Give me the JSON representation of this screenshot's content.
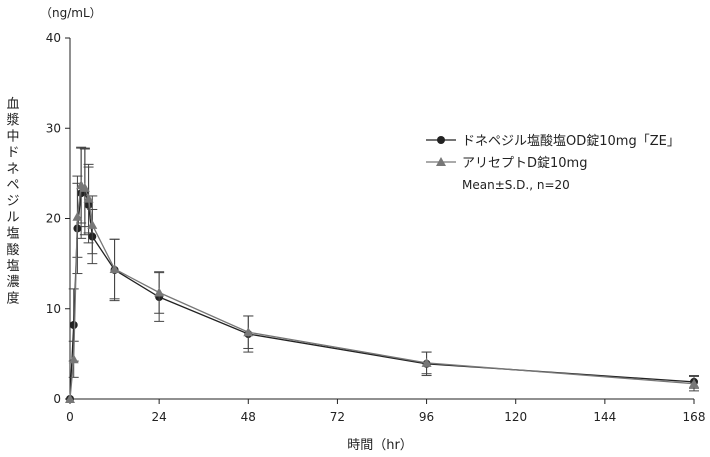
{
  "chart_data": {
    "type": "line",
    "y_unit": "（ng/mL）",
    "ylabel": "血漿中ドネペジル塩酸塩濃度",
    "xlabel": "時間（hr）",
    "xlim": [
      0,
      168
    ],
    "ylim": [
      0,
      40
    ],
    "x_ticks": [
      0,
      24,
      48,
      72,
      96,
      120,
      144,
      168
    ],
    "y_ticks": [
      0,
      10,
      20,
      30,
      40
    ],
    "legend_position": "right",
    "legend_note": "Mean±S.D., n=20",
    "series": [
      {
        "name": "ドネペジル塩酸塩OD錠10mg「ZE」",
        "marker": "circle",
        "color": "#222222",
        "x": [
          0,
          1,
          2,
          3,
          4,
          5,
          6,
          12,
          24,
          48,
          96,
          168
        ],
        "y": [
          0,
          8.2,
          18.9,
          22.8,
          23.0,
          21.5,
          18.0,
          14.3,
          11.3,
          7.2,
          3.9,
          1.9
        ],
        "sd": [
          0,
          4.0,
          5.0,
          5.0,
          4.8,
          4.2,
          3.0,
          3.4,
          2.7,
          2.0,
          1.3,
          0.7
        ]
      },
      {
        "name": "アリセプトD錠10mg",
        "marker": "triangle",
        "color": "#777777",
        "x": [
          0,
          1,
          2,
          3,
          4,
          5,
          6,
          12,
          24,
          48,
          96,
          168
        ],
        "y": [
          0,
          4.4,
          20.2,
          23.7,
          23.4,
          22.2,
          19.3,
          14.4,
          11.8,
          7.4,
          4.0,
          1.7
        ],
        "sd": [
          0,
          2.0,
          4.5,
          4.2,
          4.3,
          3.8,
          3.2,
          3.3,
          2.3,
          1.8,
          1.2,
          0.8
        ]
      }
    ]
  }
}
